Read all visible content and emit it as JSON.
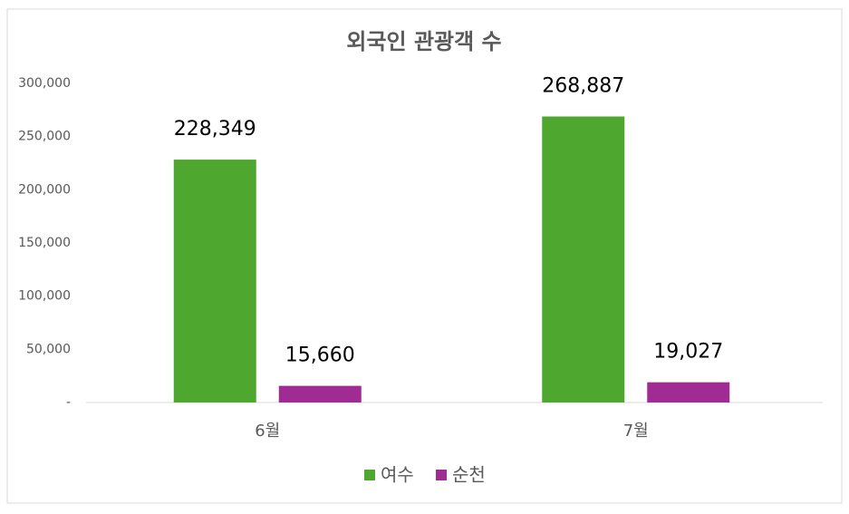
{
  "chart_data": {
    "type": "bar",
    "title": "외국인 관광객 수",
    "categories": [
      "6월",
      "7월"
    ],
    "series": [
      {
        "name": "여수",
        "color": "#4ea72e",
        "values": [
          228349,
          268887
        ],
        "value_labels": [
          "228,349",
          "268,887"
        ]
      },
      {
        "name": "순천",
        "color": "#a02b93",
        "values": [
          15660,
          19027
        ],
        "value_labels": [
          "15,660",
          "19,027"
        ]
      }
    ],
    "ylim": [
      0,
      300000
    ],
    "yticks": [
      {
        "value": 0,
        "label": "-"
      },
      {
        "value": 50000,
        "label": "50,000"
      },
      {
        "value": 100000,
        "label": "100,000"
      },
      {
        "value": 150000,
        "label": "150,000"
      },
      {
        "value": 200000,
        "label": "200,000"
      },
      {
        "value": 250000,
        "label": "250,000"
      },
      {
        "value": 300000,
        "label": "300,000"
      }
    ],
    "grid": false,
    "legend": "bottom"
  }
}
